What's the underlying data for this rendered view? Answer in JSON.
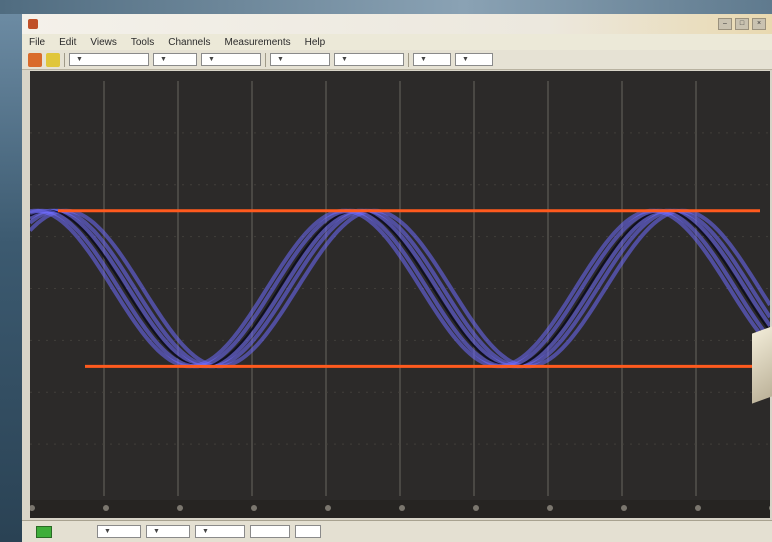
{
  "window": {
    "title": ""
  },
  "menu": {
    "items": [
      "File",
      "Edit",
      "Views",
      "Tools",
      "Channels",
      "Measurements",
      "Help"
    ]
  },
  "toolbar": {
    "timebase": "",
    "samples": "",
    "channel_a": "",
    "channel_b": "",
    "trigger_mode": "",
    "trigger_level": "",
    "zoom": ""
  },
  "scope": {
    "background_color": "#2c2a29",
    "trace_color": "#6f6cff",
    "marker_color": "#ff5a1e",
    "grid_divisions_x": 10,
    "grid_divisions_y": 8,
    "ruler_ticks": 10
  },
  "chart_data": {
    "type": "line",
    "title": "",
    "xlabel": "",
    "ylabel": "",
    "x_divisions": 10,
    "y_divisions": 8,
    "series": [
      {
        "name": "",
        "waveform": "sine",
        "cycles_visible": 2.4,
        "max_div": 1.5,
        "min_div": -1.5
      }
    ],
    "horizontal_markers_div": [
      1.5,
      -1.5
    ]
  },
  "status": {
    "indicator_label": "",
    "trigger": "",
    "mode": "",
    "threshold": "",
    "delay": ""
  }
}
